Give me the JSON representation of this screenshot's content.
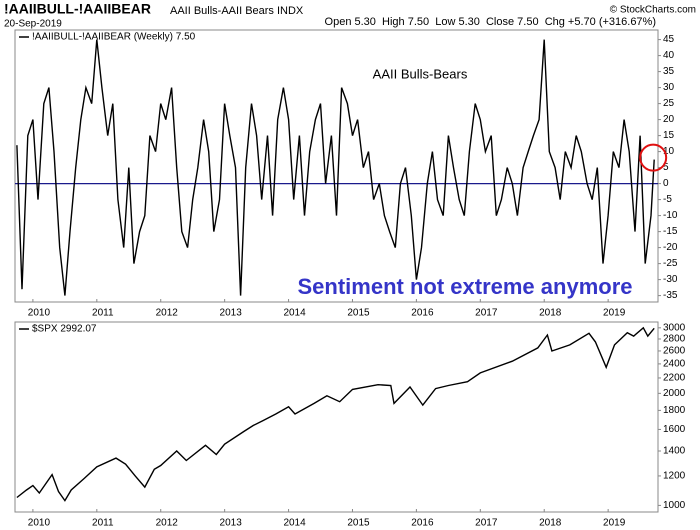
{
  "header": {
    "symbol": "!AAIIBULL-!AAIIBEAR",
    "description": "AAII Bulls-AAII Bears INDX",
    "date": "20-Sep-2019",
    "credit": "© StockCharts.com",
    "quote": "Open 5.30  High 7.50  Low 5.30  Close 7.50  Chg +5.70 (+316.67%)"
  },
  "chart_data": [
    {
      "type": "line",
      "scale": "linear",
      "series": [
        {
          "name": "!AAIIBULL-!AAIIBEAR (Weekly) 7.50",
          "color": "#000000",
          "x": [
            2009.75,
            2009.83,
            2009.92,
            2010.0,
            2010.08,
            2010.17,
            2010.25,
            2010.33,
            2010.42,
            2010.5,
            2010.58,
            2010.67,
            2010.75,
            2010.83,
            2010.92,
            2011.0,
            2011.08,
            2011.17,
            2011.25,
            2011.33,
            2011.42,
            2011.5,
            2011.58,
            2011.67,
            2011.75,
            2011.83,
            2011.92,
            2012.0,
            2012.08,
            2012.17,
            2012.25,
            2012.33,
            2012.42,
            2012.5,
            2012.58,
            2012.67,
            2012.75,
            2012.83,
            2012.92,
            2013.0,
            2013.08,
            2013.17,
            2013.25,
            2013.33,
            2013.42,
            2013.5,
            2013.58,
            2013.67,
            2013.75,
            2013.83,
            2013.92,
            2014.0,
            2014.08,
            2014.17,
            2014.25,
            2014.33,
            2014.42,
            2014.5,
            2014.58,
            2014.67,
            2014.75,
            2014.83,
            2014.92,
            2015.0,
            2015.08,
            2015.17,
            2015.25,
            2015.33,
            2015.42,
            2015.5,
            2015.58,
            2015.67,
            2015.75,
            2015.83,
            2015.92,
            2016.0,
            2016.08,
            2016.17,
            2016.25,
            2016.33,
            2016.42,
            2016.5,
            2016.58,
            2016.67,
            2016.75,
            2016.83,
            2016.92,
            2017.0,
            2017.08,
            2017.17,
            2017.25,
            2017.33,
            2017.42,
            2017.5,
            2017.58,
            2017.67,
            2017.75,
            2017.83,
            2017.92,
            2018.0,
            2018.08,
            2018.17,
            2018.25,
            2018.33,
            2018.42,
            2018.5,
            2018.58,
            2018.67,
            2018.75,
            2018.83,
            2018.92,
            2019.0,
            2019.08,
            2019.17,
            2019.25,
            2019.33,
            2019.42,
            2019.5,
            2019.58,
            2019.67,
            2019.72
          ],
          "values": [
            12,
            -33,
            15,
            20,
            -5,
            25,
            30,
            10,
            -20,
            -35,
            -15,
            5,
            20,
            30,
            25,
            45,
            30,
            15,
            25,
            -5,
            -20,
            5,
            -25,
            -15,
            -10,
            15,
            10,
            25,
            20,
            30,
            5,
            -15,
            -20,
            -5,
            5,
            20,
            10,
            -15,
            -5,
            25,
            15,
            5,
            -35,
            5,
            25,
            15,
            -5,
            15,
            -10,
            20,
            30,
            20,
            -5,
            15,
            -10,
            10,
            20,
            25,
            0,
            15,
            -10,
            30,
            25,
            15,
            20,
            5,
            10,
            -5,
            0,
            -10,
            -15,
            -20,
            0,
            5,
            -10,
            -30,
            -20,
            0,
            10,
            -5,
            -10,
            15,
            5,
            -5,
            -10,
            10,
            25,
            20,
            10,
            15,
            -10,
            -5,
            5,
            0,
            -10,
            5,
            10,
            15,
            20,
            45,
            10,
            5,
            -5,
            10,
            5,
            15,
            10,
            0,
            -5,
            5,
            -25,
            -10,
            10,
            5,
            20,
            10,
            -15,
            15,
            -25,
            -10,
            7.5
          ]
        }
      ],
      "reference_line": {
        "value": 0,
        "color": "#1a1a8c"
      },
      "annotations": [
        {
          "text": "AAII Bulls-Bears",
          "color": "#000000"
        },
        {
          "text": "Sentiment not extreme anymore",
          "color": "#3535c8"
        }
      ],
      "xlim": [
        2009.72,
        2019.78
      ],
      "xticks": [
        2010,
        2011,
        2012,
        2013,
        2014,
        2015,
        2016,
        2017,
        2018,
        2019
      ],
      "ylim": [
        -37,
        48
      ],
      "yticks": [
        45,
        40,
        35,
        30,
        25,
        20,
        15,
        10,
        5,
        0,
        -5,
        -10,
        -15,
        -20,
        -25,
        -30,
        -35
      ]
    },
    {
      "type": "line",
      "scale": "log",
      "series": [
        {
          "name": "$SPX 2992.07",
          "color": "#000000",
          "x": [
            2009.75,
            2009.9,
            2010.0,
            2010.1,
            2010.3,
            2010.4,
            2010.5,
            2010.6,
            2010.8,
            2011.0,
            2011.3,
            2011.45,
            2011.6,
            2011.75,
            2011.9,
            2012.0,
            2012.25,
            2012.4,
            2012.7,
            2012.87,
            2013.0,
            2013.3,
            2013.45,
            2013.6,
            2013.8,
            2014.0,
            2014.1,
            2014.4,
            2014.6,
            2014.8,
            2015.0,
            2015.4,
            2015.6,
            2015.65,
            2015.9,
            2016.1,
            2016.3,
            2016.5,
            2016.8,
            2017.0,
            2017.5,
            2017.9,
            2018.05,
            2018.12,
            2018.4,
            2018.7,
            2018.8,
            2018.97,
            2019.1,
            2019.3,
            2019.4,
            2019.55,
            2019.62,
            2019.72
          ],
          "values": [
            1050,
            1100,
            1130,
            1080,
            1210,
            1090,
            1030,
            1100,
            1180,
            1270,
            1340,
            1290,
            1200,
            1120,
            1250,
            1280,
            1400,
            1320,
            1450,
            1370,
            1460,
            1580,
            1640,
            1690,
            1760,
            1840,
            1760,
            1880,
            1970,
            1900,
            2050,
            2110,
            2100,
            1880,
            2080,
            1860,
            2060,
            2100,
            2150,
            2270,
            2440,
            2650,
            2870,
            2600,
            2700,
            2900,
            2750,
            2350,
            2700,
            2910,
            2850,
            3000,
            2850,
            2992
          ]
        }
      ],
      "xlim": [
        2009.72,
        2019.78
      ],
      "xticks": [
        2010,
        2011,
        2012,
        2013,
        2014,
        2015,
        2016,
        2017,
        2018,
        2019
      ],
      "ylim": [
        960,
        3110
      ],
      "yticks": [
        3000,
        2800,
        2600,
        2400,
        2200,
        2000,
        1800,
        1600,
        1400,
        1200,
        1000
      ]
    }
  ]
}
